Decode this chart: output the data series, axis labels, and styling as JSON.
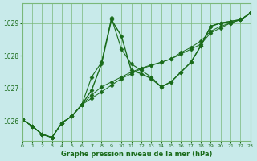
{
  "title": "Graphe pression niveau de la mer (hPa)",
  "background_color": "#c8eaea",
  "grid_color": "#7ab87a",
  "line_color": "#1a6b1a",
  "xlim": [
    0,
    23
  ],
  "ylim": [
    1025.4,
    1029.6
  ],
  "yticks": [
    1026,
    1027,
    1028,
    1029
  ],
  "xticks": [
    0,
    1,
    2,
    3,
    4,
    5,
    6,
    7,
    8,
    9,
    10,
    11,
    12,
    13,
    14,
    15,
    16,
    17,
    18,
    19,
    20,
    21,
    22,
    23
  ],
  "series": [
    {
      "x": [
        0,
        1,
        2,
        3,
        4,
        5,
        6,
        7,
        8,
        9,
        10,
        11,
        12,
        13,
        14,
        15,
        16,
        17,
        18,
        19,
        20,
        21,
        22,
        23
      ],
      "y": [
        1026.05,
        1025.85,
        1025.6,
        1025.5,
        1025.95,
        1026.15,
        1026.5,
        1026.95,
        1027.75,
        1029.1,
        1028.6,
        1027.55,
        1027.45,
        1027.3,
        1027.05,
        1027.2,
        1027.5,
        1027.8,
        1028.3,
        1028.9,
        1029.0,
        1029.05,
        1029.1,
        1029.3
      ],
      "style": "-",
      "marker": "D",
      "markersize": 2.5,
      "linewidth": 1.0
    },
    {
      "x": [
        0,
        1,
        2,
        3,
        4,
        5,
        6,
        7,
        8,
        9,
        10,
        11,
        12,
        13,
        14,
        15,
        16,
        17,
        18,
        19,
        20,
        21,
        22,
        23
      ],
      "y": [
        1026.05,
        1025.85,
        1025.6,
        1025.5,
        1025.95,
        1026.15,
        1026.5,
        1027.35,
        1027.8,
        1029.15,
        1028.2,
        1027.75,
        1027.55,
        1027.35,
        1027.05,
        1027.2,
        1027.5,
        1027.8,
        1028.3,
        1028.9,
        1029.0,
        1029.05,
        1029.1,
        1029.3
      ],
      "style": "-",
      "marker": "D",
      "markersize": 2.5,
      "linewidth": 0.8
    },
    {
      "x": [
        0,
        1,
        2,
        3,
        4,
        5,
        6,
        7,
        8,
        9,
        10,
        11,
        12,
        13,
        14,
        15,
        16,
        17,
        18,
        19,
        20,
        21,
        22,
        23
      ],
      "y": [
        1026.05,
        1025.85,
        1025.6,
        1025.5,
        1025.95,
        1026.15,
        1026.5,
        1026.7,
        1026.9,
        1027.1,
        1027.3,
        1027.45,
        1027.6,
        1027.7,
        1027.8,
        1027.9,
        1028.05,
        1028.2,
        1028.35,
        1028.7,
        1028.85,
        1029.0,
        1029.1,
        1029.3
      ],
      "style": "-",
      "marker": "D",
      "markersize": 2.5,
      "linewidth": 0.7
    },
    {
      "x": [
        0,
        1,
        2,
        3,
        4,
        5,
        6,
        7,
        8,
        9,
        10,
        11,
        12,
        13,
        14,
        15,
        16,
        17,
        18,
        19,
        20,
        21,
        22,
        23
      ],
      "y": [
        1026.05,
        1025.85,
        1025.6,
        1025.5,
        1025.95,
        1026.15,
        1026.5,
        1026.8,
        1027.05,
        1027.2,
        1027.35,
        1027.5,
        1027.62,
        1027.72,
        1027.8,
        1027.9,
        1028.1,
        1028.25,
        1028.45,
        1028.75,
        1028.9,
        1029.0,
        1029.1,
        1029.3
      ],
      "style": "-",
      "marker": "D",
      "markersize": 2.5,
      "linewidth": 0.7
    }
  ]
}
